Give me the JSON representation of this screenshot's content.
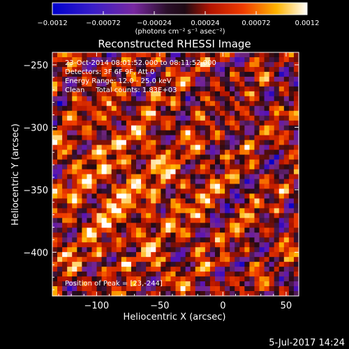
{
  "chart_data": {
    "type": "heatmap",
    "title": "Reconstructed RHESSI Image",
    "xlabel": "Heliocentric X (arcsec)",
    "ylabel": "Heliocentric Y (arcsec)",
    "xlim": [
      -135,
      60
    ],
    "ylim": [
      -435,
      -240
    ],
    "x_ticks": [
      -100,
      -50,
      0,
      50
    ],
    "y_ticks": [
      -250,
      -300,
      -350,
      -400
    ],
    "colorbar": {
      "range": [
        -0.0012,
        0.0012
      ],
      "tick_labels": [
        "-0.0012",
        "-0.00072",
        "-0.00024",
        "0.00024",
        "0.00072",
        "0.0012"
      ],
      "unit_label": "(photons cm⁻² s⁻¹ asec⁻²)",
      "colors": [
        "#0000cc",
        "#5a14b4",
        "#78288c",
        "#1e0a14",
        "#b41400",
        "#f03c00",
        "#ffb400",
        "#ffffff"
      ]
    },
    "annotations": [
      "23-Oct-2014 08:01:52.000 to 08:11:52.000",
      "Detectors: 3F 6F 9F, Att 0",
      "Energy Range: 12.0 - 25.0 keV",
      "Clean     Total counts: 1.83E+03"
    ],
    "peak_label": "Position of Peak = [23,-244]",
    "peak_position": [
      23,
      -244
    ],
    "grid": false
  },
  "footer": {
    "date": "5-Jul-2017 14:24"
  }
}
